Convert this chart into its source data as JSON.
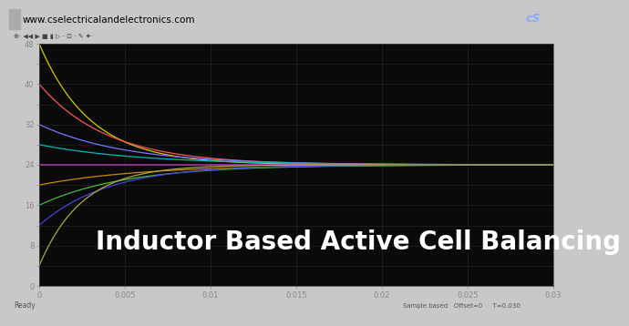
{
  "title": "Inductor Based Active Cell Balancing",
  "background_color": "#c8c8c8",
  "plot_bg_color": "#0a0a0a",
  "text_color": "#ffffff",
  "grid_color": "#2a2a2a",
  "x_min": 0,
  "x_max": 0.03,
  "y_min": 0,
  "y_max": 48,
  "x_ticks": [
    0,
    0.005,
    0.01,
    0.015,
    0.02,
    0.025,
    0.03
  ],
  "x_tick_labels": [
    "0",
    "0.005",
    "0.01",
    "0.015",
    "0.02",
    "0.025",
    "0.03"
  ],
  "y_ticks": [
    0,
    4,
    8,
    12,
    16,
    20,
    24,
    28,
    32,
    36,
    40,
    44,
    48
  ],
  "y_tick_labels": [
    "0",
    "",
    "8",
    "",
    "16",
    "",
    "24",
    "",
    "32",
    "",
    "40",
    "",
    "48"
  ],
  "curves": [
    {
      "start": 48,
      "end": 24,
      "color": "#cccc00",
      "tau": 0.003
    },
    {
      "start": 40,
      "end": 24,
      "color": "#ff5555",
      "tau": 0.004
    },
    {
      "start": 32,
      "end": 24,
      "color": "#7777ff",
      "tau": 0.005
    },
    {
      "start": 28,
      "end": 24,
      "color": "#00bbbb",
      "tau": 0.006
    },
    {
      "start": 24,
      "end": 24,
      "color": "#cc44cc",
      "tau": 0.007
    },
    {
      "start": 20,
      "end": 24,
      "color": "#cc8800",
      "tau": 0.006
    },
    {
      "start": 16,
      "end": 24,
      "color": "#44bb44",
      "tau": 0.005
    },
    {
      "start": 12,
      "end": 24,
      "color": "#4444dd",
      "tau": 0.004
    },
    {
      "start": 4,
      "end": 24,
      "color": "#aaaa44",
      "tau": 0.0025
    }
  ],
  "header_text": "www.cselectricalandelectronics.com",
  "header_bg": "#d4d0c8",
  "toolbar_bg": "#d4d0c8",
  "status_bg": "#d4d0c8",
  "title_fontsize": 20,
  "axis_tick_fontsize": 6,
  "axis_color": "#888888",
  "header_text_color": "#000000",
  "status_text_color": "#555555",
  "logo_bg": "#111122"
}
